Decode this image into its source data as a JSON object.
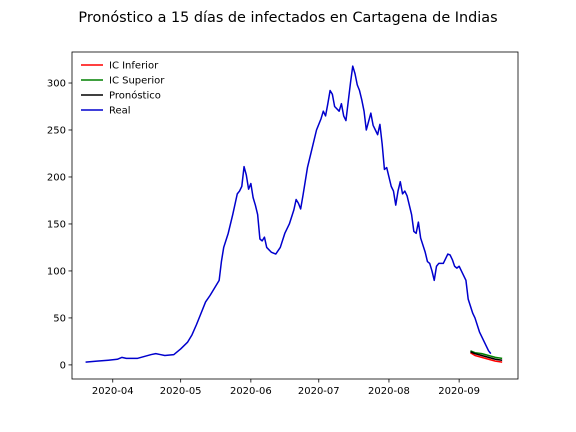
{
  "chart_data": {
    "type": "line",
    "title": "Pronóstico a 15 días de infectados en Cartagena de Indias",
    "xlabel": "",
    "ylabel": "",
    "x_ticks": [
      "2020-04",
      "2020-05",
      "2020-06",
      "2020-07",
      "2020-08",
      "2020-09"
    ],
    "y_ticks": [
      0,
      50,
      100,
      150,
      200,
      250,
      300
    ],
    "xlim": [
      "2020-03-14",
      "2020-09-27"
    ],
    "ylim": [
      -15,
      333
    ],
    "grid": false,
    "legend_position": "top-left",
    "colors": {
      "ic_inferior": "#ff0000",
      "ic_superior": "#008000",
      "pronostico": "#000000",
      "real": "#0000cd"
    },
    "series": [
      {
        "name": "IC Inferior",
        "points": [
          [
            "2020-09-06",
            13
          ],
          [
            "2020-09-08",
            10
          ],
          [
            "2020-09-11",
            8
          ],
          [
            "2020-09-14",
            6
          ],
          [
            "2020-09-17",
            4
          ],
          [
            "2020-09-20",
            3
          ]
        ]
      },
      {
        "name": "IC Superior",
        "points": [
          [
            "2020-09-06",
            15
          ],
          [
            "2020-09-08",
            13
          ],
          [
            "2020-09-11",
            12
          ],
          [
            "2020-09-14",
            10
          ],
          [
            "2020-09-17",
            8
          ],
          [
            "2020-09-20",
            7
          ]
        ]
      },
      {
        "name": "Pronóstico",
        "points": [
          [
            "2020-09-06",
            14
          ],
          [
            "2020-09-08",
            12
          ],
          [
            "2020-09-11",
            10
          ],
          [
            "2020-09-14",
            8
          ],
          [
            "2020-09-17",
            6
          ],
          [
            "2020-09-20",
            5
          ]
        ]
      },
      {
        "name": "Real",
        "points": [
          [
            "2020-03-20",
            3
          ],
          [
            "2020-03-25",
            4
          ],
          [
            "2020-03-30",
            5
          ],
          [
            "2020-04-03",
            6
          ],
          [
            "2020-04-05",
            8
          ],
          [
            "2020-04-07",
            7
          ],
          [
            "2020-04-12",
            7
          ],
          [
            "2020-04-15",
            9
          ],
          [
            "2020-04-18",
            11
          ],
          [
            "2020-04-20",
            12
          ],
          [
            "2020-04-22",
            11
          ],
          [
            "2020-04-24",
            10
          ],
          [
            "2020-04-28",
            11
          ],
          [
            "2020-05-01",
            17
          ],
          [
            "2020-05-04",
            24
          ],
          [
            "2020-05-06",
            32
          ],
          [
            "2020-05-08",
            43
          ],
          [
            "2020-05-10",
            55
          ],
          [
            "2020-05-12",
            67
          ],
          [
            "2020-05-14",
            74
          ],
          [
            "2020-05-16",
            82
          ],
          [
            "2020-05-18",
            90
          ],
          [
            "2020-05-19",
            110
          ],
          [
            "2020-05-20",
            125
          ],
          [
            "2020-05-22",
            140
          ],
          [
            "2020-05-24",
            160
          ],
          [
            "2020-05-26",
            182
          ],
          [
            "2020-05-27",
            185
          ],
          [
            "2020-05-28",
            190
          ],
          [
            "2020-05-29",
            211
          ],
          [
            "2020-05-30",
            202
          ],
          [
            "2020-05-31",
            187
          ],
          [
            "2020-06-01",
            193
          ],
          [
            "2020-06-02",
            178
          ],
          [
            "2020-06-03",
            170
          ],
          [
            "2020-06-04",
            160
          ],
          [
            "2020-06-05",
            134
          ],
          [
            "2020-06-06",
            132
          ],
          [
            "2020-06-07",
            136
          ],
          [
            "2020-06-08",
            125
          ],
          [
            "2020-06-10",
            120
          ],
          [
            "2020-06-12",
            118
          ],
          [
            "2020-06-14",
            125
          ],
          [
            "2020-06-16",
            140
          ],
          [
            "2020-06-18",
            150
          ],
          [
            "2020-06-20",
            165
          ],
          [
            "2020-06-21",
            176
          ],
          [
            "2020-06-22",
            172
          ],
          [
            "2020-06-23",
            166
          ],
          [
            "2020-06-24",
            180
          ],
          [
            "2020-06-26",
            210
          ],
          [
            "2020-06-28",
            230
          ],
          [
            "2020-06-30",
            250
          ],
          [
            "2020-07-02",
            262
          ],
          [
            "2020-07-03",
            270
          ],
          [
            "2020-07-04",
            265
          ],
          [
            "2020-07-05",
            278
          ],
          [
            "2020-07-06",
            292
          ],
          [
            "2020-07-07",
            288
          ],
          [
            "2020-07-08",
            275
          ],
          [
            "2020-07-10",
            270
          ],
          [
            "2020-07-11",
            278
          ],
          [
            "2020-07-12",
            265
          ],
          [
            "2020-07-13",
            260
          ],
          [
            "2020-07-14",
            280
          ],
          [
            "2020-07-15",
            300
          ],
          [
            "2020-07-16",
            318
          ],
          [
            "2020-07-17",
            310
          ],
          [
            "2020-07-18",
            298
          ],
          [
            "2020-07-19",
            292
          ],
          [
            "2020-07-20",
            282
          ],
          [
            "2020-07-21",
            270
          ],
          [
            "2020-07-22",
            250
          ],
          [
            "2020-07-24",
            268
          ],
          [
            "2020-07-25",
            255
          ],
          [
            "2020-07-26",
            250
          ],
          [
            "2020-07-27",
            245
          ],
          [
            "2020-07-28",
            256
          ],
          [
            "2020-07-29",
            235
          ],
          [
            "2020-07-30",
            208
          ],
          [
            "2020-07-31",
            210
          ],
          [
            "2020-08-01",
            200
          ],
          [
            "2020-08-02",
            190
          ],
          [
            "2020-08-03",
            185
          ],
          [
            "2020-08-04",
            170
          ],
          [
            "2020-08-05",
            185
          ],
          [
            "2020-08-06",
            195
          ],
          [
            "2020-08-07",
            182
          ],
          [
            "2020-08-08",
            185
          ],
          [
            "2020-08-09",
            180
          ],
          [
            "2020-08-10",
            170
          ],
          [
            "2020-08-11",
            160
          ],
          [
            "2020-08-12",
            142
          ],
          [
            "2020-08-13",
            140
          ],
          [
            "2020-08-14",
            152
          ],
          [
            "2020-08-15",
            135
          ],
          [
            "2020-08-17",
            120
          ],
          [
            "2020-08-18",
            110
          ],
          [
            "2020-08-19",
            108
          ],
          [
            "2020-08-20",
            100
          ],
          [
            "2020-08-21",
            90
          ],
          [
            "2020-08-22",
            105
          ],
          [
            "2020-08-23",
            108
          ],
          [
            "2020-08-25",
            108
          ],
          [
            "2020-08-27",
            118
          ],
          [
            "2020-08-28",
            117
          ],
          [
            "2020-08-29",
            112
          ],
          [
            "2020-08-30",
            105
          ],
          [
            "2020-08-31",
            103
          ],
          [
            "2020-09-01",
            105
          ],
          [
            "2020-09-02",
            100
          ],
          [
            "2020-09-04",
            90
          ],
          [
            "2020-09-05",
            70
          ],
          [
            "2020-09-07",
            55
          ],
          [
            "2020-09-08",
            50
          ],
          [
            "2020-09-10",
            35
          ],
          [
            "2020-09-12",
            25
          ],
          [
            "2020-09-14",
            15
          ],
          [
            "2020-09-15",
            12
          ]
        ]
      }
    ]
  }
}
